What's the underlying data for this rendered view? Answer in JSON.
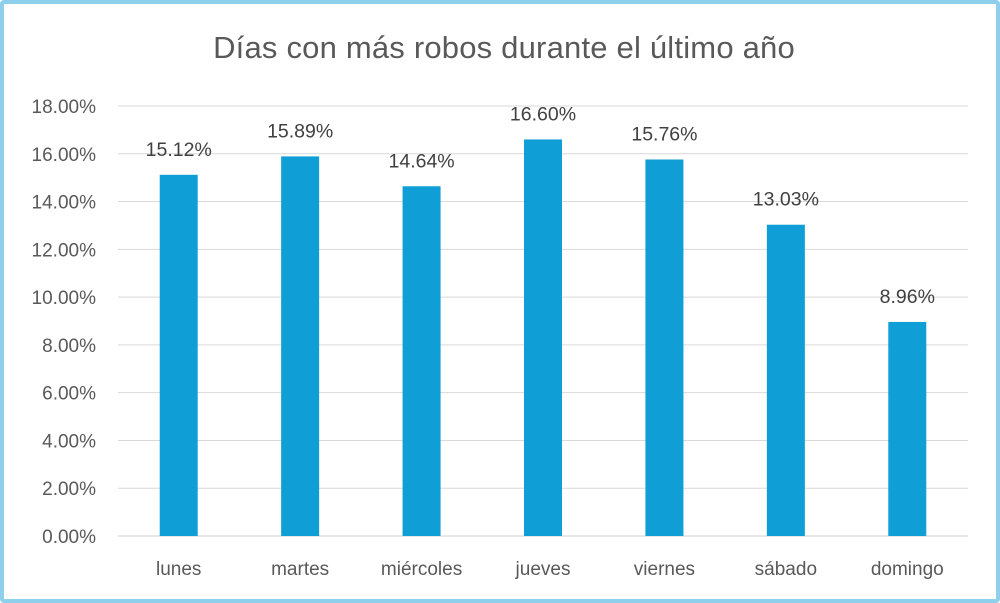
{
  "chart_data": {
    "type": "bar",
    "title": "Días con más robos durante el último año",
    "categories": [
      "lunes",
      "martes",
      "miércoles",
      "jueves",
      "viernes",
      "sábado",
      "domingo"
    ],
    "values": [
      15.12,
      15.89,
      14.64,
      16.6,
      15.76,
      13.03,
      8.96
    ],
    "data_labels": [
      "15.12%",
      "15.89%",
      "14.64%",
      "16.60%",
      "15.76%",
      "13.03%",
      "8.96%"
    ],
    "value_unit": "%",
    "ylim": [
      0,
      18
    ],
    "y_ticks": [
      0,
      2,
      4,
      6,
      8,
      10,
      12,
      14,
      16,
      18
    ],
    "y_tick_labels": [
      "0.00%",
      "2.00%",
      "4.00%",
      "6.00%",
      "8.00%",
      "10.00%",
      "12.00%",
      "14.00%",
      "16.00%",
      "18.00%"
    ],
    "xlabel": "",
    "ylabel": "",
    "grid": true,
    "legend": "none",
    "colors": {
      "bar": "#0f9ed5",
      "frame": "#8ecfec",
      "grid": "#d9d9d9",
      "text": "#595959"
    }
  }
}
